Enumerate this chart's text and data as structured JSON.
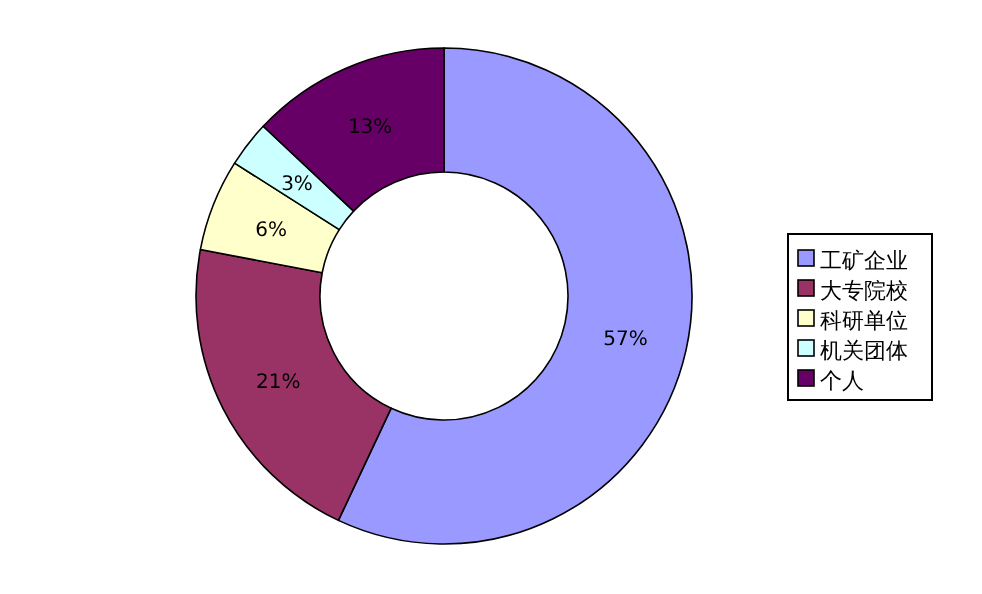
{
  "chart_data": {
    "type": "donut",
    "categories": [
      "工矿企业",
      "大专院校",
      "科研单位",
      "机关团体",
      "个人"
    ],
    "values": [
      57,
      21,
      6,
      3,
      13
    ],
    "colors": [
      "#9999ff",
      "#993366",
      "#ffffcc",
      "#ccffff",
      "#660066"
    ],
    "value_labels": [
      "57%",
      "21%",
      "6%",
      "3%",
      "13%"
    ],
    "legend": "right"
  }
}
